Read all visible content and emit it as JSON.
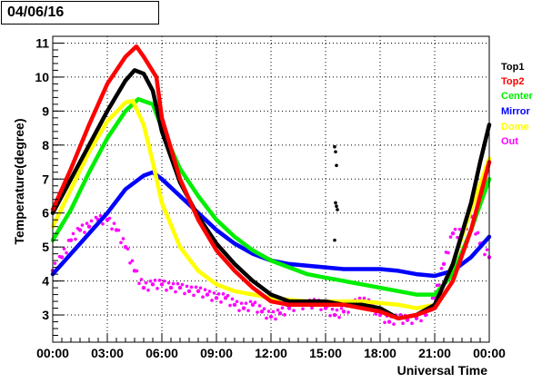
{
  "header": {
    "date": "04/06/16"
  },
  "chart_data": {
    "type": "scatter",
    "title": "",
    "xlabel": "Universal Time",
    "ylabel": "Temperature(degree)",
    "xlim": [
      0,
      24
    ],
    "ylim": [
      2.2,
      11.2
    ],
    "grid": true,
    "legend_placement": "right",
    "x_ticks": [
      0,
      3,
      6,
      9,
      12,
      15,
      18,
      21,
      24
    ],
    "x_tick_labels": [
      "00:00",
      "03:00",
      "06:00",
      "09:00",
      "12:00",
      "15:00",
      "18:00",
      "21:00",
      "00:00"
    ],
    "y_ticks": [
      3,
      4,
      5,
      6,
      7,
      8,
      9,
      10,
      11
    ],
    "y_tick_labels": [
      "3",
      "4",
      "5",
      "6",
      "7",
      "8",
      "9",
      "10",
      "11"
    ],
    "series": [
      {
        "name": "Top1",
        "color": "#000000",
        "points": [
          [
            0,
            6.0
          ],
          [
            1,
            7.0
          ],
          [
            2,
            8.0
          ],
          [
            3,
            9.0
          ],
          [
            4,
            9.9
          ],
          [
            4.5,
            10.2
          ],
          [
            5,
            10.1
          ],
          [
            5.5,
            9.6
          ],
          [
            6,
            8.4
          ],
          [
            7,
            6.9
          ],
          [
            8,
            5.9
          ],
          [
            9,
            5.1
          ],
          [
            10,
            4.5
          ],
          [
            11,
            4.0
          ],
          [
            12,
            3.6
          ],
          [
            13,
            3.4
          ],
          [
            14,
            3.4
          ],
          [
            15,
            3.4
          ],
          [
            16,
            3.3
          ],
          [
            17,
            3.3
          ],
          [
            18,
            3.2
          ],
          [
            19,
            2.9
          ],
          [
            20,
            3.0
          ],
          [
            21,
            3.3
          ],
          [
            22,
            4.5
          ],
          [
            23,
            6.3
          ],
          [
            23.5,
            7.5
          ],
          [
            24,
            8.6
          ]
        ]
      },
      {
        "name": "Top2",
        "color": "#ff0000",
        "points": [
          [
            0,
            6.1
          ],
          [
            1,
            7.3
          ],
          [
            2,
            8.6
          ],
          [
            3,
            9.8
          ],
          [
            4,
            10.6
          ],
          [
            4.6,
            10.9
          ],
          [
            5,
            10.6
          ],
          [
            5.7,
            10.0
          ],
          [
            6,
            8.8
          ],
          [
            7,
            7.0
          ],
          [
            8,
            5.8
          ],
          [
            9,
            4.9
          ],
          [
            10,
            4.3
          ],
          [
            11,
            3.8
          ],
          [
            12,
            3.4
          ],
          [
            13,
            3.3
          ],
          [
            14,
            3.3
          ],
          [
            15,
            3.3
          ],
          [
            16,
            3.3
          ],
          [
            17,
            3.2
          ],
          [
            18,
            3.1
          ],
          [
            19,
            2.9
          ],
          [
            20,
            3.0
          ],
          [
            21,
            3.2
          ],
          [
            22,
            4.0
          ],
          [
            23,
            5.5
          ],
          [
            24,
            7.5
          ]
        ]
      },
      {
        "name": "Center",
        "color": "#00ee00",
        "points": [
          [
            0,
            5.2
          ],
          [
            1,
            6.1
          ],
          [
            2,
            7.2
          ],
          [
            3,
            8.2
          ],
          [
            4,
            9.0
          ],
          [
            4.7,
            9.35
          ],
          [
            5.5,
            9.2
          ],
          [
            6,
            8.5
          ],
          [
            7,
            7.3
          ],
          [
            8,
            6.5
          ],
          [
            9,
            5.8
          ],
          [
            10,
            5.3
          ],
          [
            11,
            4.9
          ],
          [
            12,
            4.6
          ],
          [
            13,
            4.4
          ],
          [
            14,
            4.2
          ],
          [
            15,
            4.1
          ],
          [
            16,
            4.0
          ],
          [
            17,
            3.9
          ],
          [
            18,
            3.8
          ],
          [
            19,
            3.7
          ],
          [
            20,
            3.6
          ],
          [
            21,
            3.6
          ],
          [
            22,
            4.2
          ],
          [
            23,
            5.5
          ],
          [
            24,
            7.0
          ]
        ]
      },
      {
        "name": "Mirror",
        "color": "#0000ff",
        "points": [
          [
            0,
            4.2
          ],
          [
            1,
            4.8
          ],
          [
            2,
            5.4
          ],
          [
            3,
            6.0
          ],
          [
            4,
            6.7
          ],
          [
            5,
            7.1
          ],
          [
            5.5,
            7.2
          ],
          [
            6,
            7.0
          ],
          [
            7,
            6.5
          ],
          [
            8,
            6.0
          ],
          [
            9,
            5.5
          ],
          [
            10,
            5.1
          ],
          [
            11,
            4.8
          ],
          [
            12,
            4.6
          ],
          [
            13,
            4.5
          ],
          [
            14,
            4.45
          ],
          [
            15,
            4.4
          ],
          [
            16,
            4.35
          ],
          [
            17,
            4.35
          ],
          [
            18,
            4.35
          ],
          [
            19,
            4.3
          ],
          [
            20,
            4.2
          ],
          [
            21,
            4.15
          ],
          [
            22,
            4.3
          ],
          [
            23,
            4.7
          ],
          [
            24,
            5.3
          ]
        ]
      },
      {
        "name": "Dome",
        "color": "#ffff00",
        "points": [
          [
            0,
            5.6
          ],
          [
            1,
            6.7
          ],
          [
            2,
            7.8
          ],
          [
            3,
            8.7
          ],
          [
            4,
            9.25
          ],
          [
            4.4,
            9.3
          ],
          [
            5,
            8.6
          ],
          [
            5.5,
            7.5
          ],
          [
            6,
            6.3
          ],
          [
            7,
            5.0
          ],
          [
            8,
            4.3
          ],
          [
            9,
            3.9
          ],
          [
            10,
            3.7
          ],
          [
            11,
            3.6
          ],
          [
            12,
            3.5
          ],
          [
            13,
            3.45
          ],
          [
            14,
            3.4
          ],
          [
            15,
            3.4
          ],
          [
            16,
            3.4
          ],
          [
            17,
            3.4
          ],
          [
            18,
            3.35
          ],
          [
            19,
            3.3
          ],
          [
            20,
            3.2
          ],
          [
            21,
            3.3
          ],
          [
            22,
            4.5
          ],
          [
            23,
            6.1
          ],
          [
            24,
            7.6
          ]
        ]
      },
      {
        "name": "Out",
        "color": "#ff00ff",
        "points": [
          [
            0,
            4.3
          ],
          [
            0.5,
            4.7
          ],
          [
            1,
            5.2
          ],
          [
            1.5,
            5.5
          ],
          [
            2,
            5.6
          ],
          [
            2.5,
            5.8
          ],
          [
            3,
            5.8
          ],
          [
            3.5,
            5.5
          ],
          [
            4,
            5.0
          ],
          [
            4.5,
            4.3
          ],
          [
            5,
            3.8
          ],
          [
            5.5,
            3.9
          ],
          [
            6,
            3.9
          ],
          [
            6.5,
            3.8
          ],
          [
            7,
            3.8
          ],
          [
            7.5,
            3.7
          ],
          [
            8,
            3.7
          ],
          [
            8.5,
            3.6
          ],
          [
            9,
            3.5
          ],
          [
            9.5,
            3.5
          ],
          [
            10,
            3.3
          ],
          [
            10.5,
            3.2
          ],
          [
            11,
            3.3
          ],
          [
            11.5,
            3.1
          ],
          [
            12,
            2.95
          ],
          [
            12.5,
            3.05
          ],
          [
            13,
            3.2
          ],
          [
            13.5,
            3.3
          ],
          [
            14,
            3.3
          ],
          [
            14.5,
            3.35
          ],
          [
            15,
            3.2
          ],
          [
            15.5,
            3.0
          ],
          [
            16,
            3.1
          ],
          [
            16.5,
            3.3
          ],
          [
            17,
            3.4
          ],
          [
            17.5,
            3.3
          ],
          [
            18,
            3.0
          ],
          [
            18.5,
            2.8
          ],
          [
            19,
            2.9
          ],
          [
            19.5,
            2.85
          ],
          [
            20,
            2.9
          ],
          [
            20.5,
            3.0
          ],
          [
            21,
            3.5
          ],
          [
            21.5,
            4.5
          ],
          [
            22,
            5.4
          ],
          [
            22.5,
            5.4
          ],
          [
            23,
            5.9
          ],
          [
            23.5,
            5.1
          ],
          [
            24,
            4.7
          ]
        ]
      }
    ],
    "isolated_points": {
      "color": "#000000",
      "points": [
        [
          15.5,
          7.95
        ],
        [
          15.55,
          7.8
        ],
        [
          15.6,
          7.4
        ],
        [
          15.55,
          6.3
        ],
        [
          15.6,
          6.2
        ],
        [
          15.65,
          6.1
        ],
        [
          15.5,
          5.2
        ]
      ]
    }
  }
}
